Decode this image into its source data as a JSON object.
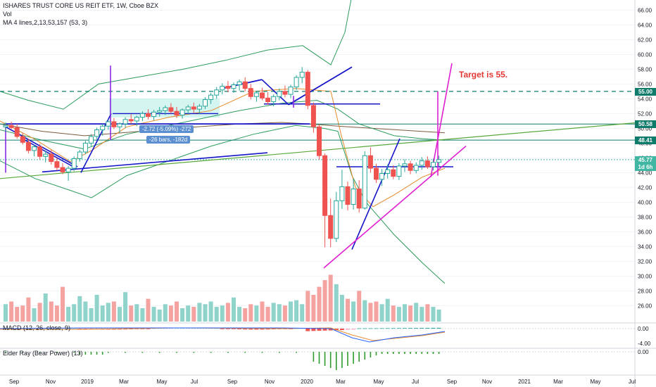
{
  "header": {
    "symbol_line": "ISHARES TRUST CORE US REIT ETF, 1W, Cboe BZX",
    "volume_label": "Vol",
    "ma_label": "MA 4 lines,2,13,53,157 (53, 3)"
  },
  "panes": {
    "macd_label": "MACD (12, 26, close, 9)",
    "elder_label": "Elder Ray (Bear Power) (13)"
  },
  "annotations": {
    "target_text": "Target is 55.",
    "measure_change": "-2.72 (-5.09%) -272",
    "measure_bars": "-26 bars, -182d"
  },
  "price_tags": [
    {
      "text": "55.00",
      "price": 55.0,
      "color": "#0f7c6b"
    },
    {
      "text": "50.58",
      "price": 50.58,
      "color": "#0f7c6b"
    },
    {
      "text": "48.41",
      "price": 48.41,
      "color": "#0f7c6b"
    },
    {
      "text": "45.77",
      "price": 45.77,
      "color": "#41b6a3"
    },
    {
      "text": "1d 6h",
      "price": 44.82,
      "color": "#41b6a3"
    }
  ],
  "colors": {
    "up": "#26a69a",
    "down": "#ef5350",
    "trendline_blue": "#1616c8",
    "trendline_magenta": "#e020d0",
    "trendline_green": "#59a83c",
    "bollinger": "#2e9c5d",
    "ma_orange": "#e58b2b",
    "target_text": "#e53935"
  },
  "chart_data": {
    "type": "candlestick",
    "title": "ISHARES TRUST CORE US REIT ETF, 1W, Cboe BZX",
    "x_ticks": [
      "Sep",
      "Nov",
      "2019",
      "Mar",
      "May",
      "Jul",
      "Sep",
      "Nov",
      "2020",
      "Mar",
      "May",
      "Jul",
      "Sep",
      "Nov",
      "2021",
      "Mar",
      "May",
      "Jul"
    ],
    "y_ticks": [
      26.0,
      28.0,
      30.0,
      32.0,
      34.0,
      36.0,
      38.0,
      40.0,
      42.0,
      44.0,
      46.0,
      48.0,
      50.0,
      52.0,
      54.0,
      56.0,
      58.0,
      60.0,
      62.0,
      64.0,
      66.0
    ],
    "ylim": [
      24.8,
      66.8
    ],
    "macd_ticks": [
      0.0,
      -4.0
    ],
    "elder_ticks": [
      0.0
    ],
    "candles": [
      [
        50.2,
        50.8,
        49.6,
        50.4
      ],
      [
        50.4,
        50.9,
        49.9,
        50.1
      ],
      [
        50.1,
        50.6,
        48.6,
        48.9
      ],
      [
        48.9,
        49.4,
        47.8,
        48.1
      ],
      [
        48.1,
        48.6,
        46.6,
        47.0
      ],
      [
        47.0,
        47.8,
        46.2,
        47.5
      ],
      [
        47.5,
        47.9,
        45.8,
        46.2
      ],
      [
        46.2,
        47.0,
        45.4,
        46.5
      ],
      [
        46.5,
        47.1,
        45.1,
        45.5
      ],
      [
        45.5,
        46.0,
        44.3,
        44.7
      ],
      [
        44.7,
        45.3,
        43.8,
        44.1
      ],
      [
        44.1,
        44.9,
        42.9,
        44.6
      ],
      [
        44.6,
        46.2,
        44.2,
        45.9
      ],
      [
        45.9,
        47.1,
        45.5,
        46.8
      ],
      [
        46.8,
        48.3,
        46.5,
        48.0
      ],
      [
        48.0,
        49.2,
        47.6,
        48.9
      ],
      [
        48.9,
        50.1,
        48.4,
        49.8
      ],
      [
        49.8,
        50.6,
        49.0,
        50.3
      ],
      [
        50.3,
        51.2,
        49.8,
        50.9
      ],
      [
        50.9,
        51.4,
        49.9,
        50.2
      ],
      [
        50.2,
        50.8,
        49.4,
        50.6
      ],
      [
        50.6,
        51.5,
        50.1,
        51.2
      ],
      [
        51.2,
        51.9,
        50.6,
        51.0
      ],
      [
        51.0,
        51.7,
        50.3,
        51.5
      ],
      [
        51.5,
        52.3,
        51.0,
        52.0
      ],
      [
        52.0,
        52.6,
        51.2,
        51.6
      ],
      [
        51.6,
        52.5,
        51.1,
        52.2
      ],
      [
        52.2,
        52.9,
        51.6,
        52.4
      ],
      [
        52.4,
        53.1,
        51.8,
        52.8
      ],
      [
        52.8,
        53.4,
        52.0,
        52.3
      ],
      [
        52.3,
        52.9,
        51.4,
        51.8
      ],
      [
        51.8,
        52.7,
        51.3,
        52.5
      ],
      [
        52.5,
        53.2,
        51.9,
        52.9
      ],
      [
        52.9,
        53.5,
        52.1,
        52.6
      ],
      [
        52.6,
        53.3,
        51.9,
        53.0
      ],
      [
        53.0,
        54.2,
        52.6,
        53.9
      ],
      [
        53.9,
        54.8,
        53.3,
        54.5
      ],
      [
        54.5,
        55.6,
        54.0,
        55.2
      ],
      [
        55.2,
        56.1,
        54.6,
        55.7
      ],
      [
        55.7,
        56.4,
        54.9,
        55.4
      ],
      [
        55.4,
        56.2,
        54.8,
        55.9
      ],
      [
        55.9,
        56.6,
        55.1,
        56.3
      ],
      [
        56.3,
        56.9,
        55.0,
        55.4
      ],
      [
        55.4,
        56.0,
        53.9,
        54.3
      ],
      [
        54.3,
        55.1,
        53.6,
        54.8
      ],
      [
        54.8,
        55.5,
        53.8,
        54.1
      ],
      [
        54.1,
        54.9,
        53.2,
        53.6
      ],
      [
        53.6,
        54.6,
        53.0,
        54.3
      ],
      [
        54.3,
        55.4,
        53.8,
        55.0
      ],
      [
        55.0,
        55.8,
        54.2,
        54.6
      ],
      [
        54.6,
        55.9,
        54.1,
        55.6
      ],
      [
        55.6,
        57.2,
        55.2,
        56.9
      ],
      [
        56.9,
        58.3,
        56.1,
        57.6
      ],
      [
        57.6,
        57.9,
        52.6,
        53.1
      ],
      [
        53.1,
        53.5,
        49.4,
        50.2
      ],
      [
        50.2,
        50.5,
        45.8,
        46.3
      ],
      [
        46.3,
        46.6,
        33.9,
        38.2
      ],
      [
        38.2,
        40.5,
        33.9,
        35.1
      ],
      [
        35.1,
        41.4,
        34.6,
        40.2
      ],
      [
        40.2,
        44.4,
        39.1,
        42.1
      ],
      [
        42.1,
        42.8,
        38.9,
        39.7
      ],
      [
        39.7,
        43.1,
        39.0,
        41.8
      ],
      [
        41.8,
        43.0,
        38.6,
        39.2
      ],
      [
        39.2,
        46.9,
        39.0,
        46.3
      ],
      [
        46.3,
        47.4,
        44.0,
        44.6
      ],
      [
        44.6,
        45.2,
        42.6,
        43.1
      ],
      [
        43.1,
        44.5,
        42.2,
        43.9
      ],
      [
        43.9,
        45.1,
        43.2,
        44.4
      ],
      [
        44.4,
        45.0,
        43.1,
        43.5
      ],
      [
        43.5,
        45.3,
        43.0,
        44.9
      ],
      [
        44.9,
        45.8,
        44.1,
        45.2
      ],
      [
        45.2,
        45.6,
        43.8,
        44.3
      ],
      [
        44.3,
        45.4,
        43.9,
        45.0
      ],
      [
        45.0,
        46.1,
        44.4,
        45.6
      ],
      [
        45.6,
        46.2,
        44.5,
        44.8
      ],
      [
        44.8,
        45.9,
        44.3,
        45.4
      ],
      [
        45.4,
        46.3,
        44.9,
        45.77
      ]
    ],
    "volume_relative": [
      0.26,
      0.3,
      0.22,
      0.24,
      0.36,
      0.2,
      0.28,
      0.42,
      0.3,
      0.24,
      0.52,
      0.22,
      0.26,
      0.38,
      0.3,
      0.2,
      0.4,
      0.24,
      0.28,
      0.3,
      0.22,
      0.44,
      0.24,
      0.26,
      0.2,
      0.34,
      0.22,
      0.18,
      0.26,
      0.24,
      0.3,
      0.2,
      0.24,
      0.22,
      0.28,
      0.26,
      0.3,
      0.22,
      0.24,
      0.28,
      0.36,
      0.22,
      0.2,
      0.26,
      0.24,
      0.3,
      0.22,
      0.28,
      0.26,
      0.24,
      0.3,
      0.32,
      0.26,
      0.46,
      0.4,
      0.52,
      0.62,
      0.7,
      0.56,
      0.4,
      0.34,
      0.3,
      0.46,
      0.32,
      0.28,
      0.3,
      0.26,
      0.34,
      0.24,
      0.22,
      0.26,
      0.24,
      0.28,
      0.22,
      0.26,
      0.22,
      0.18
    ],
    "horizontal_levels": [
      55.0,
      50.58,
      48.41,
      45.77
    ],
    "target_price": 55.0
  }
}
